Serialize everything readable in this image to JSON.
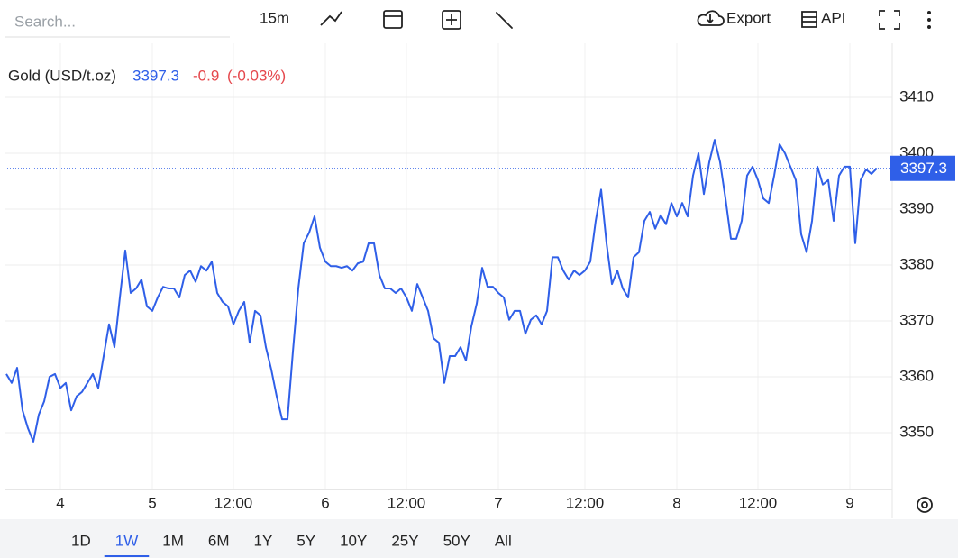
{
  "toolbar": {
    "search_placeholder": "Search...",
    "interval": "15m",
    "export": "Export",
    "api": "API"
  },
  "range_buttons": [
    "1D",
    "1W",
    "1M",
    "6M",
    "1Y",
    "5Y",
    "10Y",
    "25Y",
    "50Y",
    "All"
  ],
  "active_range": "1W",
  "chart_data": {
    "type": "line",
    "title": "Gold (USD/t.oz)",
    "last_value": 3397.3,
    "change": -0.9,
    "change_label": "(-0.03%)",
    "categories": [
      null,
      null,
      null,
      null,
      null,
      null,
      null,
      null,
      null,
      null,
      "4",
      null,
      null,
      null,
      null,
      null,
      null,
      null,
      null,
      null,
      null,
      null,
      null,
      null,
      null,
      null,
      null,
      "5",
      null,
      null,
      null,
      null,
      null,
      null,
      null,
      null,
      null,
      null,
      null,
      null,
      null,
      null,
      "12:00",
      null,
      null,
      null,
      null,
      null,
      null,
      null,
      null,
      null,
      null,
      null,
      null,
      null,
      null,
      null,
      null,
      "6",
      null,
      null,
      null,
      null,
      null,
      null,
      null,
      null,
      null,
      null,
      null,
      null,
      null,
      null,
      "12:00",
      null,
      null,
      null,
      null,
      null,
      null,
      null,
      null,
      null,
      null,
      null,
      null,
      null,
      null,
      null,
      null,
      "7",
      null,
      null,
      null,
      null,
      null,
      null,
      null,
      null,
      null,
      null,
      null,
      null,
      null,
      null,
      null,
      "12:00",
      null,
      null,
      null,
      null,
      null,
      null,
      null,
      null,
      null,
      null,
      null,
      null,
      null,
      null,
      null,
      null,
      "8",
      null,
      null,
      null,
      null,
      null,
      null,
      null,
      null,
      null,
      null,
      null,
      null,
      null,
      null,
      "12:00",
      null,
      null,
      null,
      null,
      null,
      null,
      null,
      null,
      null,
      null,
      null,
      null,
      null,
      null,
      null,
      null,
      "9",
      null,
      null,
      null,
      null,
      null
    ],
    "series": [
      {
        "name": "Gold",
        "color": "#2f5fe8",
        "values": [
          3360.5,
          3358.9,
          3361.6,
          3354,
          3350.8,
          3348.4,
          3353.2,
          3355.6,
          3360,
          3360.5,
          3358,
          3358.9,
          3354,
          3356.5,
          3357.3,
          3358.9,
          3360.5,
          3358,
          3363.7,
          3369.4,
          3365.3,
          3374.2,
          3382.6,
          3375,
          3375.8,
          3377.4,
          3372.6,
          3371.8,
          3374.2,
          3376.1,
          3375.8,
          3375.8,
          3374.2,
          3378.2,
          3379,
          3377,
          3379.8,
          3379,
          3380.6,
          3375,
          3373.4,
          3372.6,
          3369.4,
          3371.8,
          3373.4,
          3366.1,
          3371.8,
          3371,
          3365.3,
          3361.3,
          3356.5,
          3352.4,
          3352.4,
          3364.5,
          3375.8,
          3383.9,
          3385.8,
          3388.7,
          3383.1,
          3380.6,
          3379.8,
          3379.8,
          3379.5,
          3379.8,
          3379,
          3380.3,
          3380.6,
          3383.9,
          3383.9,
          3378.2,
          3375.8,
          3375.8,
          3375,
          3375.8,
          3374.2,
          3371.8,
          3376.6,
          3374.2,
          3371.8,
          3366.9,
          3366.1,
          3358.9,
          3363.7,
          3363.7,
          3365.3,
          3362.9,
          3369,
          3373.1,
          3379.5,
          3376.1,
          3376.1,
          3375,
          3374.2,
          3370.2,
          3371.8,
          3371.8,
          3367.7,
          3370.2,
          3371,
          3369.4,
          3371.8,
          3381.4,
          3381.4,
          3379,
          3377.4,
          3379,
          3378.2,
          3379,
          3380.6,
          3387.9,
          3393.5,
          3383.9,
          3376.6,
          3379,
          3375.8,
          3374.2,
          3381.4,
          3382.3,
          3387.9,
          3389.5,
          3386.5,
          3388.9,
          3387.3,
          3391.1,
          3388.7,
          3391.1,
          3388.7,
          3396,
          3400,
          3392.7,
          3398.4,
          3402.4,
          3398.4,
          3391.9,
          3384.7,
          3384.7,
          3387.9,
          3396,
          3397.6,
          3395.2,
          3391.9,
          3391.1,
          3396,
          3401.6,
          3400,
          3397.6,
          3395.2,
          3385.5,
          3382.3,
          3387.9,
          3397.6,
          3394.4,
          3395.2,
          3387.9,
          3396,
          3397.6,
          3397.6,
          3383.9,
          3395.2,
          3397.1,
          3396.3,
          3397.3
        ]
      }
    ],
    "ylim": [
      3340,
      3420
    ],
    "yticks": [
      3350,
      3360,
      3370,
      3380,
      3390,
      3400,
      3410
    ],
    "grid": true
  }
}
